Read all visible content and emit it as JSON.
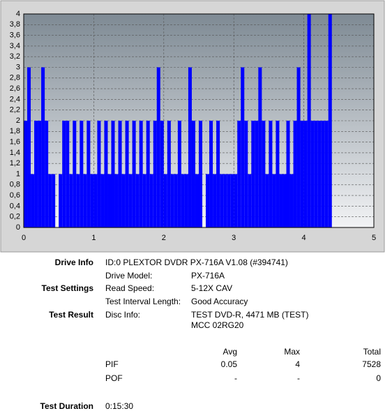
{
  "chart_data": {
    "type": "bar",
    "x_unit": "GB",
    "x": [
      0,
      0.05,
      0.1,
      0.15,
      0.2,
      0.25,
      0.3,
      0.35,
      0.4,
      0.45,
      0.5,
      0.55,
      0.6,
      0.65,
      0.7,
      0.75,
      0.8,
      0.85,
      0.9,
      0.95,
      1,
      1.05,
      1.1,
      1.15,
      1.2,
      1.25,
      1.3,
      1.35,
      1.4,
      1.45,
      1.5,
      1.55,
      1.6,
      1.65,
      1.7,
      1.75,
      1.8,
      1.85,
      1.9,
      1.95,
      2,
      2.05,
      2.1,
      2.15,
      2.2,
      2.25,
      2.3,
      2.35,
      2.4,
      2.45,
      2.5,
      2.55,
      2.6,
      2.65,
      2.7,
      2.75,
      2.8,
      2.85,
      2.9,
      2.95,
      3,
      3.05,
      3.1,
      3.15,
      3.2,
      3.25,
      3.3,
      3.35,
      3.4,
      3.45,
      3.5,
      3.55,
      3.6,
      3.65,
      3.7,
      3.75,
      3.8,
      3.85,
      3.9,
      3.95,
      4,
      4.05,
      4.1,
      4.15,
      4.2,
      4.25,
      4.3,
      4.35
    ],
    "series": [
      {
        "name": "PIF",
        "color": "#0000ff",
        "values": [
          2,
          3,
          1,
          2,
          2,
          3,
          2,
          1,
          1,
          0,
          1,
          2,
          2,
          1,
          2,
          1,
          2,
          1,
          2,
          1,
          1,
          2,
          1,
          2,
          1,
          2,
          1,
          2,
          1,
          2,
          1,
          2,
          1,
          2,
          1,
          2,
          1,
          2,
          3,
          2,
          1,
          2,
          1,
          1,
          2,
          1,
          1,
          3,
          2,
          1,
          2,
          0,
          1,
          2,
          1,
          2,
          1,
          1,
          1,
          1,
          1,
          2,
          3,
          2,
          1,
          2,
          2,
          3,
          2,
          1,
          2,
          1,
          2,
          1,
          1,
          2,
          1,
          2,
          3,
          2,
          2,
          4,
          2,
          2,
          2,
          2,
          2,
          4
        ]
      }
    ],
    "xlim": [
      0,
      5
    ],
    "xticks": [
      0,
      1,
      2,
      3,
      4,
      5
    ],
    "ylim": [
      0,
      4
    ],
    "yticks": [
      0,
      {
        "value": 0.2,
        "label": "0,2"
      },
      {
        "value": 0.4,
        "label": "0,4"
      },
      {
        "value": 0.6,
        "label": "0,6"
      },
      {
        "value": 0.8,
        "label": "0,8"
      },
      1,
      {
        "value": 1.2,
        "label": "1,2"
      },
      {
        "value": 1.4,
        "label": "1,4"
      },
      {
        "value": 1.6,
        "label": "1,6"
      },
      {
        "value": 1.8,
        "label": "1,8"
      },
      2,
      {
        "value": 2.2,
        "label": "2,2"
      },
      {
        "value": 2.4,
        "label": "2,4"
      },
      {
        "value": 2.6,
        "label": "2,6"
      },
      {
        "value": 2.8,
        "label": "2,8"
      },
      3,
      {
        "value": 3.2,
        "label": "3,2"
      },
      {
        "value": 3.4,
        "label": "3,4"
      },
      {
        "value": 3.6,
        "label": "3,6"
      },
      {
        "value": 3.8,
        "label": "3,8"
      },
      4
    ],
    "grid": true
  },
  "info": {
    "rows": [
      [
        "Drive Info",
        "ID:0 PLEXTOR DVDR PX-716A V1.08 (#394741)",
        ""
      ],
      [
        "",
        "Drive Model:",
        "PX-716A"
      ],
      [
        "Test Settings",
        "Read Speed:",
        "5-12X CAV"
      ],
      [
        "",
        "Test Interval Length:",
        "Good Accuracy"
      ],
      [
        "Test Result",
        "Disc Info:",
        "TEST DVD-R, 4471 MB (TEST)"
      ],
      [
        "",
        "",
        "MCC 02RG20"
      ]
    ],
    "stats": {
      "header": [
        "Avg",
        "Max",
        "Total"
      ],
      "rows": [
        [
          "PIF",
          "0.05",
          "4",
          "7528"
        ],
        [
          "POF",
          "-",
          "-",
          "0"
        ]
      ]
    },
    "duration": [
      "Test Duration",
      "0:15:30"
    ]
  }
}
